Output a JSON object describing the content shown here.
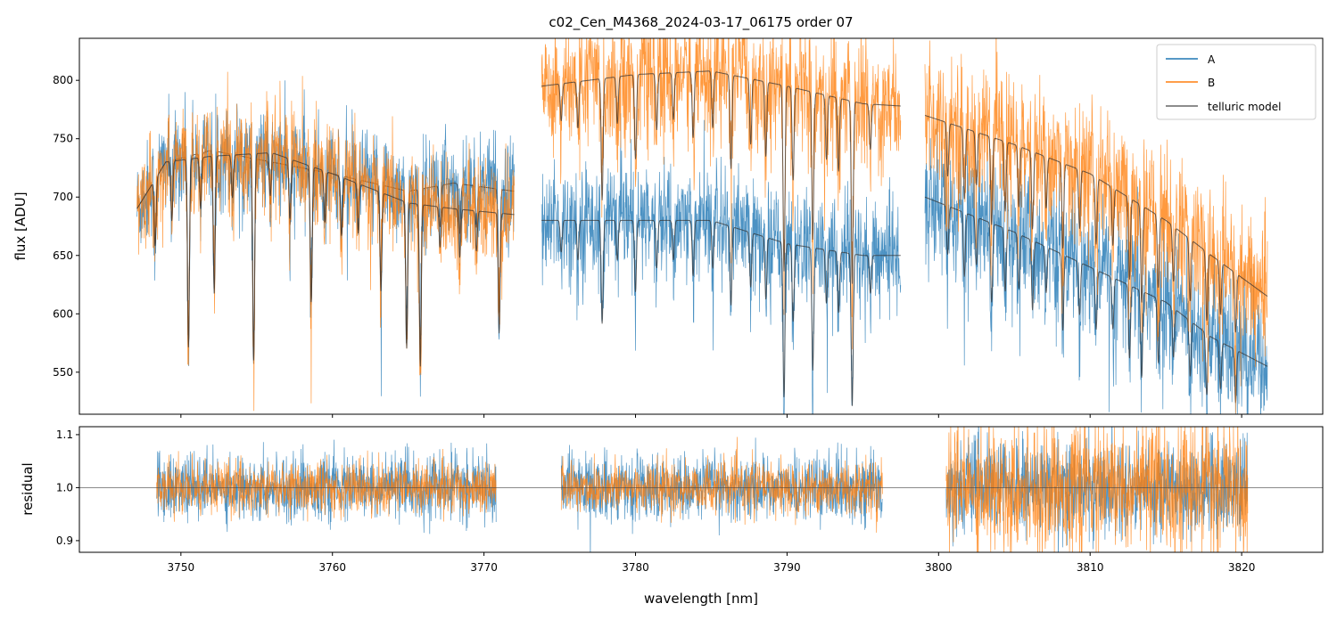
{
  "chart_data": [
    {
      "type": "line",
      "title": "c02_Cen_M4368_2024-03-17_06175  order 07",
      "xlabel": "",
      "ylabel": "flux [ADU]",
      "xlim": [
        3743.3,
        3825.35
      ],
      "ylim": [
        514,
        836
      ],
      "yticks": [
        550,
        600,
        650,
        700,
        750,
        800
      ],
      "legend": {
        "placement": "top-right",
        "entries": [
          "A",
          "B",
          "telluric model"
        ]
      },
      "colors": {
        "A": "#1f77b4",
        "B": "#ff7f0e",
        "model": "#333333"
      },
      "segments": [
        {
          "range": [
            3747.1,
            3772.0
          ],
          "A_continuum": [
            [
              3747.1,
              690
            ],
            [
              3749,
              730
            ],
            [
              3752,
              740
            ],
            [
              3756,
              730
            ],
            [
              3760,
              720
            ],
            [
              3765,
              705
            ],
            [
              3768,
              712
            ],
            [
              3772,
              705
            ]
          ],
          "B_continuum": [
            [
              3747.1,
              690
            ],
            [
              3749,
              730
            ],
            [
              3752,
              735
            ],
            [
              3756,
              738
            ],
            [
              3760,
              720
            ],
            [
              3765,
              695
            ],
            [
              3768,
              690
            ],
            [
              3772,
              685
            ]
          ],
          "noise_A": 22,
          "noise_B": 22
        },
        {
          "range": [
            3773.8,
            3797.5
          ],
          "A_continuum": [
            [
              3773.8,
              680
            ],
            [
              3785,
              680
            ],
            [
              3790,
              660
            ],
            [
              3795,
              650
            ],
            [
              3797.5,
              650
            ]
          ],
          "B_continuum": [
            [
              3773.8,
              795
            ],
            [
              3780,
              805
            ],
            [
              3785,
              808
            ],
            [
              3790,
              795
            ],
            [
              3795,
              780
            ],
            [
              3797.5,
              778
            ]
          ],
          "noise_A": 24,
          "noise_B": 28
        },
        {
          "range": [
            3799.1,
            3821.7
          ],
          "A_continuum": [
            [
              3799.1,
              700
            ],
            [
              3805,
              670
            ],
            [
              3810,
              640
            ],
            [
              3815,
              610
            ],
            [
              3818,
              580
            ],
            [
              3821.7,
              555
            ]
          ],
          "B_continuum": [
            [
              3799.1,
              770
            ],
            [
              3805,
              745
            ],
            [
              3810,
              720
            ],
            [
              3815,
              680
            ],
            [
              3818,
              650
            ],
            [
              3821.7,
              615
            ]
          ],
          "noise_A": 28,
          "noise_B": 30
        }
      ],
      "telluric_lines": [
        [
          3748.3,
          0.08
        ],
        [
          3749.4,
          0.07
        ],
        [
          3750.5,
          0.22
        ],
        [
          3751.3,
          0.06
        ],
        [
          3752.2,
          0.16
        ],
        [
          3753.4,
          0.05
        ],
        [
          3754.8,
          0.24
        ],
        [
          3755.9,
          0.05
        ],
        [
          3757.2,
          0.07
        ],
        [
          3758.6,
          0.16
        ],
        [
          3759.5,
          0.06
        ],
        [
          3760.6,
          0.07
        ],
        [
          3761.7,
          0.06
        ],
        [
          3763.2,
          0.12
        ],
        [
          3764.9,
          0.18
        ],
        [
          3765.8,
          0.2
        ],
        [
          3767.1,
          0.05
        ],
        [
          3768.4,
          0.06
        ],
        [
          3769.5,
          0.05
        ],
        [
          3771,
          0.15
        ],
        [
          3775.1,
          0.04
        ],
        [
          3776.2,
          0.05
        ],
        [
          3777.8,
          0.13
        ],
        [
          3778.8,
          0.05
        ],
        [
          3780,
          0.09
        ],
        [
          3781.4,
          0.06
        ],
        [
          3782.5,
          0.05
        ],
        [
          3783.8,
          0.07
        ],
        [
          3785.1,
          0.06
        ],
        [
          3786.3,
          0.1
        ],
        [
          3787.6,
          0.07
        ],
        [
          3788.6,
          0.08
        ],
        [
          3789.8,
          0.2
        ],
        [
          3790.4,
          0.1
        ],
        [
          3791.7,
          0.16
        ],
        [
          3792.6,
          0.07
        ],
        [
          3793.4,
          0.08
        ],
        [
          3794.3,
          0.2
        ],
        [
          3795.5,
          0.05
        ],
        [
          3800.6,
          0.06
        ],
        [
          3801.7,
          0.08
        ],
        [
          3802.5,
          0.06
        ],
        [
          3803.5,
          0.1
        ],
        [
          3804.4,
          0.08
        ],
        [
          3805.3,
          0.07
        ],
        [
          3806.2,
          0.09
        ],
        [
          3807.1,
          0.06
        ],
        [
          3808.2,
          0.1
        ],
        [
          3809.3,
          0.07
        ],
        [
          3810.4,
          0.08
        ],
        [
          3811.5,
          0.07
        ],
        [
          3812.6,
          0.1
        ],
        [
          3813.4,
          0.12
        ],
        [
          3814.5,
          0.09
        ],
        [
          3815.5,
          0.07
        ],
        [
          3816.6,
          0.08
        ],
        [
          3817.7,
          0.09
        ],
        [
          3818.6,
          0.07
        ],
        [
          3819.6,
          0.08
        ]
      ]
    },
    {
      "type": "line",
      "xlabel": "wavelength [nm]",
      "ylabel": "residual",
      "xlim": [
        3743.3,
        3825.35
      ],
      "ylim": [
        0.878,
        1.115
      ],
      "xticks": [
        3750,
        3760,
        3770,
        3780,
        3790,
        3800,
        3810,
        3820
      ],
      "yticks": [
        "0.9",
        "1.0",
        "1.1"
      ],
      "reference_line": 1.0,
      "segments": [
        {
          "range": [
            3748.4,
            3770.8
          ],
          "sigma_A": 0.03,
          "sigma_B": 0.025
        },
        {
          "range": [
            3775.1,
            3796.3
          ],
          "sigma_A": 0.03,
          "sigma_B": 0.025
        },
        {
          "range": [
            3800.5,
            3820.4
          ],
          "sigma_A": 0.045,
          "sigma_B": 0.06
        }
      ]
    }
  ]
}
